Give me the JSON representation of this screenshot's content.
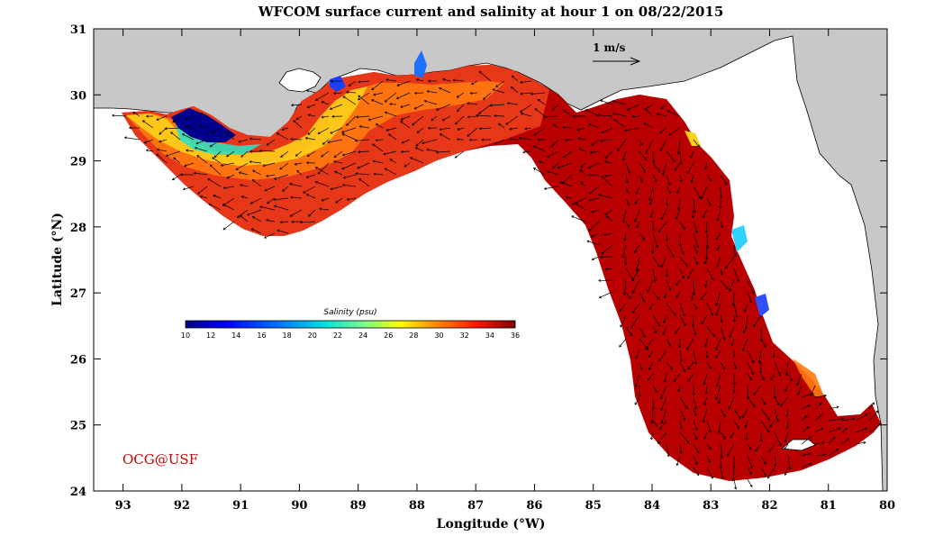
{
  "title": "WFCOM surface current and salinity at hour 1 on 08/22/2015",
  "x_axis": {
    "label": "Longitude (°W)",
    "ticks": [
      "93",
      "92",
      "91",
      "90",
      "89",
      "88",
      "87",
      "86",
      "85",
      "84",
      "83",
      "82",
      "81",
      "80"
    ],
    "range": [
      93.5,
      80.0
    ]
  },
  "y_axis": {
    "label": "Latitude (°N)",
    "ticks": [
      "24",
      "25",
      "26",
      "27",
      "28",
      "29",
      "30",
      "31"
    ],
    "range": [
      24.0,
      31.0
    ]
  },
  "scale_vector": {
    "label": "1 m/s"
  },
  "colorbar": {
    "title": "Salinity (psu)",
    "ticks": [
      "10",
      "12",
      "14",
      "16",
      "18",
      "20",
      "22",
      "24",
      "26",
      "28",
      "30",
      "32",
      "34",
      "36"
    ],
    "range": [
      10,
      36
    ]
  },
  "credit": "OCG@USF",
  "colors": {
    "land": "#c8c8c8",
    "credit": "#cc0000",
    "ocean_high_salinity": "#b80000",
    "ocean_mid_salinity": "#e83a1a",
    "low_salinity": "#00008c"
  }
}
